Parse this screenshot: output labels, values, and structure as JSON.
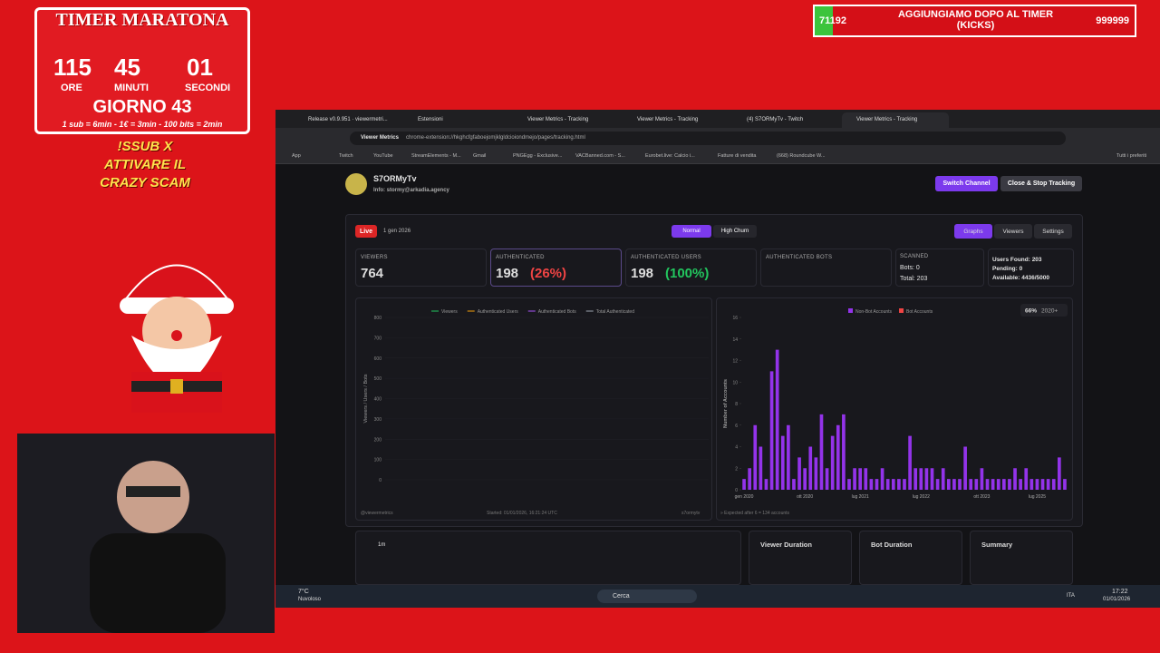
{
  "overlay": {
    "timer_title": "TIMER MARATONA",
    "hours": "115",
    "minutes": "45",
    "seconds": "01",
    "hours_label": "ORE",
    "minutes_label": "MINUTI",
    "seconds_label": "SECONDI",
    "day": "GIORNO 43",
    "rates": "1 sub = 6min - 1€ = 3min - 100 bits = 2min",
    "command": [
      "!SSUB X",
      "ATTIVARE IL",
      "CRAZY SCAM"
    ]
  },
  "banner": {
    "left": "71192",
    "text": "AGGIUNGIAMO DOPO AL TIMER (KICKS)",
    "right": "999999"
  },
  "browser": {
    "tabs": [
      "Release v0.9.951 · viewermetri...",
      "Estensioni",
      "Viewer Metrics - Tracking",
      "Viewer Metrics - Tracking",
      "(4) S7ORMyTv - Twitch",
      "Viewer Metrics - Tracking"
    ],
    "site_chip": "Viewer Metrics",
    "url": "chrome-extension://hkghcfgfaboejomjklgldcioiondmejo/pages/tracking.html",
    "bookmarks": [
      "App",
      "Twitch",
      "YouTube",
      "StreamElements - M...",
      "Gmail",
      "PNGEgg - Exclusive...",
      "VACBanned.com - S...",
      "Eurobet.live: Calcio i...",
      "Fatture di vendita",
      "(668) Roundcube W..."
    ],
    "all_bookmarks": "Tutti i preferiti"
  },
  "header": {
    "channel": "S7ORMyTv",
    "info": "Info: stormy@arkadia.agency",
    "switch": "Switch Channel",
    "close": "Close & Stop Tracking"
  },
  "toolbar": {
    "live": "Live",
    "date": "1 gen 2026",
    "modes": [
      "Normal",
      "High Churn"
    ],
    "tabs": [
      "Graphs",
      "Viewers",
      "Settings"
    ]
  },
  "stats": {
    "viewers": {
      "label": "VIEWERS",
      "value": "764"
    },
    "authenticated": {
      "label": "AUTHENTICATED",
      "value": "198",
      "pct": "(26%)"
    },
    "authenticated_users": {
      "label": "AUTHENTICATED USERS",
      "value": "198",
      "pct": "(100%)"
    },
    "authenticated_bots": {
      "label": "AUTHENTICATED BOTS"
    },
    "scanned": {
      "label": "SCANNED",
      "bots": "Bots: 0",
      "total": "Total: 203"
    },
    "users": {
      "found": "Users Found: 203",
      "pending": "Pending: 0",
      "available": "Available: 4436/5000"
    }
  },
  "chart_data": [
    {
      "type": "line",
      "ylabel": "Viewers / Users / Bots",
      "ylim": [
        0,
        800
      ],
      "yticks": [
        0,
        100,
        200,
        300,
        400,
        500,
        600,
        700,
        800
      ],
      "grid": true,
      "series": [
        {
          "name": "Viewers",
          "color": "#22c55e",
          "values": []
        },
        {
          "name": "Authenticated Users",
          "color": "#f59e0b",
          "values": []
        },
        {
          "name": "Authenticated Bots",
          "color": "#a855f7",
          "values": []
        },
        {
          "name": "Total Authenticated",
          "color": "#9ca3af",
          "values": []
        }
      ],
      "footer_left": "@viewermetrics",
      "footer_center": "Started: 01/01/2026, 16:21:24 UTC",
      "footer_right": "s7ormytv"
    },
    {
      "type": "bar",
      "ylabel": "Number of Accounts",
      "ylim": [
        0,
        16
      ],
      "yticks": [
        0,
        2,
        4,
        6,
        8,
        10,
        12,
        14,
        16
      ],
      "color": "#9333ea",
      "legend": [
        {
          "name": "Non-Bot Accounts",
          "color": "#9333ea"
        },
        {
          "name": "Bot Accounts",
          "color": "#ef4444"
        }
      ],
      "badge": "66%",
      "badge_range": "2020+",
      "categories": [
        "gen 2020",
        null,
        null,
        null,
        null,
        null,
        null,
        null,
        null,
        null,
        null,
        "ott 2020",
        null,
        null,
        null,
        null,
        null,
        null,
        null,
        null,
        null,
        "lug 2021",
        null,
        null,
        null,
        null,
        null,
        null,
        null,
        null,
        null,
        null,
        "lug 2022",
        null,
        null,
        null,
        null,
        null,
        null,
        null,
        null,
        null,
        null,
        "ott 2023",
        null,
        null,
        null,
        null,
        null,
        null,
        null,
        null,
        null,
        "lug 2025",
        null,
        null,
        null,
        null,
        null
      ],
      "values": [
        1,
        2,
        6,
        4,
        1,
        11,
        13,
        5,
        6,
        1,
        3,
        2,
        4,
        3,
        7,
        2,
        5,
        6,
        7,
        1,
        2,
        2,
        2,
        1,
        1,
        2,
        1,
        1,
        1,
        1,
        5,
        2,
        2,
        2,
        2,
        1,
        2,
        1,
        1,
        1,
        4,
        1,
        1,
        2,
        1,
        1,
        1,
        1,
        1,
        2,
        1,
        2,
        1,
        1,
        1,
        1,
        1,
        3,
        1
      ],
      "footer": "» Expected after 6 = 134 accounts"
    }
  ],
  "bottom": {
    "range": "1m",
    "panels": [
      "Viewer Duration",
      "Bot Duration",
      "Summary"
    ]
  },
  "taskbar": {
    "temp": "7°C",
    "weather": "Nuvoloso",
    "search": "Cerca",
    "lang": "ITA",
    "time": "17:22",
    "date": "01/01/2026"
  }
}
